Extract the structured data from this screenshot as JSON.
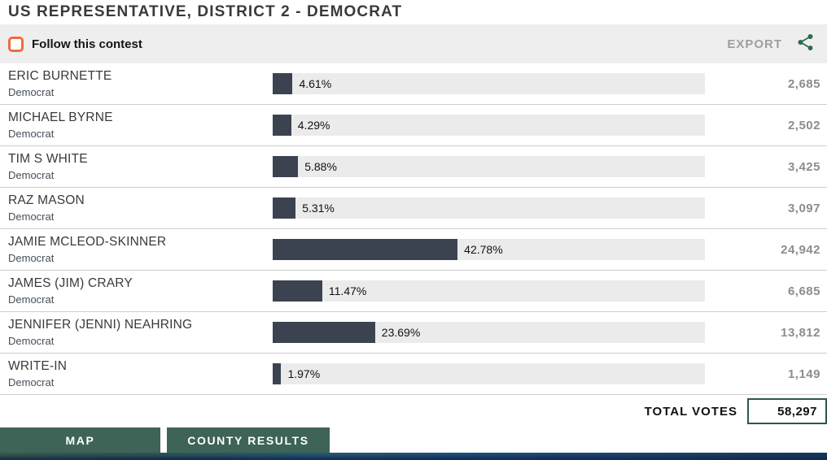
{
  "header": {
    "title": "US REPRESENTATIVE, DISTRICT 2 - DEMOCRAT"
  },
  "follow_bar": {
    "follow_label": "Follow this contest",
    "checkbox_checked": false,
    "export_label": "EXPORT",
    "share_icon": "share-icon"
  },
  "results": {
    "candidates": [
      {
        "name": "ERIC BURNETTE",
        "party": "Democrat",
        "percent": "4.61%",
        "percent_value": 4.61,
        "votes": "2,685"
      },
      {
        "name": "MICHAEL BYRNE",
        "party": "Democrat",
        "percent": "4.29%",
        "percent_value": 4.29,
        "votes": "2,502"
      },
      {
        "name": "TIM S WHITE",
        "party": "Democrat",
        "percent": "5.88%",
        "percent_value": 5.88,
        "votes": "3,425"
      },
      {
        "name": "RAZ MASON",
        "party": "Democrat",
        "percent": "5.31%",
        "percent_value": 5.31,
        "votes": "3,097"
      },
      {
        "name": "JAMIE MCLEOD-SKINNER",
        "party": "Democrat",
        "percent": "42.78%",
        "percent_value": 42.78,
        "votes": "24,942"
      },
      {
        "name": "JAMES (JIM) CRARY",
        "party": "Democrat",
        "percent": "11.47%",
        "percent_value": 11.47,
        "votes": "6,685"
      },
      {
        "name": "JENNIFER (JENNI) NEAHRING",
        "party": "Democrat",
        "percent": "23.69%",
        "percent_value": 23.69,
        "votes": "13,812"
      },
      {
        "name": "WRITE-IN",
        "party": "Democrat",
        "percent": "1.97%",
        "percent_value": 1.97,
        "votes": "1,149"
      }
    ],
    "total_label": "TOTAL VOTES",
    "total_votes": "58,297"
  },
  "footer": {
    "map_label": "MAP",
    "county_results_label": "COUNTY RESULTS"
  },
  "colors": {
    "bar_fill": "#3b4351",
    "bar_track": "#ebebeb",
    "follow_checkbox_orange": "#f26b3e",
    "share_icon_green": "#2d6a4f",
    "tab_button_green": "#3d6456",
    "total_box_border_green": "#2d5948",
    "vote_count_gray": "#8d8d8d",
    "export_gray": "#9e9e9e",
    "follow_bar_gray": "#eeeeee"
  }
}
